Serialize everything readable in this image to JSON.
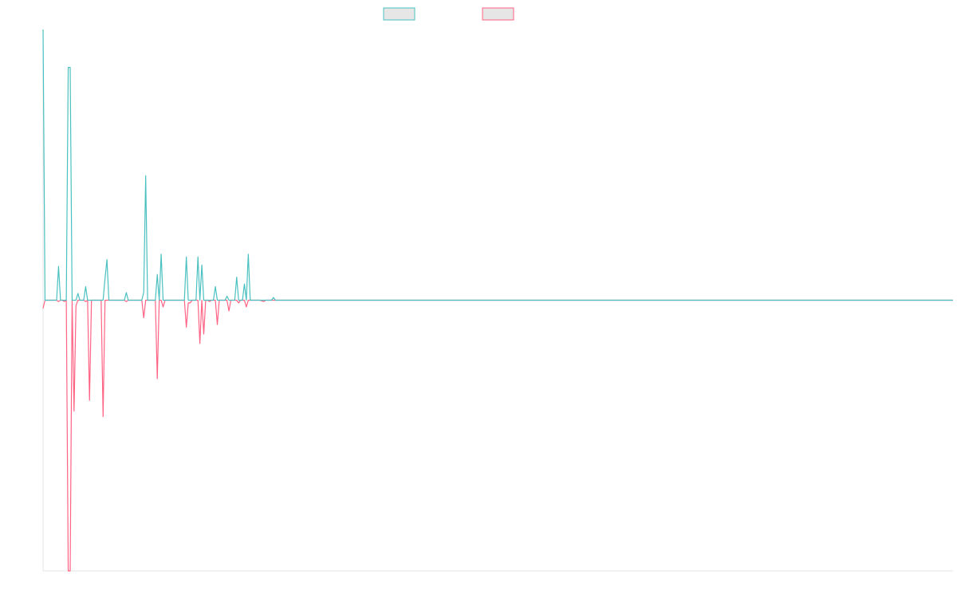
{
  "chart_data": {
    "type": "line",
    "title": "",
    "xlabel": "",
    "ylabel": "",
    "grid": false,
    "legend": "top-center",
    "legend_entries": [
      "",
      ""
    ],
    "series": [
      {
        "name": "",
        "color": "#4bc0c0",
        "points": [
          [
            0,
            1.0
          ],
          [
            1,
            0.0
          ],
          [
            5,
            0.0
          ],
          [
            7,
            0.0
          ],
          [
            8,
            0.125
          ],
          [
            9,
            0.0
          ],
          [
            10,
            0.0
          ],
          [
            11,
            0.0
          ],
          [
            12,
            0.0
          ],
          [
            13,
            0.86
          ],
          [
            14,
            0.86
          ],
          [
            15,
            0.0
          ],
          [
            16,
            0.0
          ],
          [
            17,
            0.0
          ],
          [
            18,
            0.025
          ],
          [
            19,
            0.0
          ],
          [
            20,
            0.0
          ],
          [
            21,
            0.0
          ],
          [
            22,
            0.05
          ],
          [
            23,
            0.0
          ],
          [
            24,
            0.0
          ],
          [
            25,
            0.0
          ],
          [
            26,
            0.0
          ],
          [
            29,
            0.0
          ],
          [
            30,
            0.0
          ],
          [
            31,
            0.0
          ],
          [
            32,
            0.08
          ],
          [
            33,
            0.15
          ],
          [
            34,
            0.0
          ],
          [
            35,
            0.0
          ],
          [
            36,
            0.0
          ],
          [
            40,
            0.0
          ],
          [
            41,
            0.0
          ],
          [
            42,
            0.0
          ],
          [
            43,
            0.028
          ],
          [
            44,
            0.0
          ],
          [
            45,
            0.0
          ],
          [
            50,
            0.0
          ],
          [
            51,
            0.0
          ],
          [
            52,
            0.03
          ],
          [
            53,
            0.46
          ],
          [
            54,
            0.0
          ],
          [
            56,
            0.0
          ],
          [
            57,
            0.0
          ],
          [
            58,
            0.0
          ],
          [
            59,
            0.095
          ],
          [
            60,
            0.0
          ],
          [
            61,
            0.17
          ],
          [
            62,
            0.0
          ],
          [
            63,
            0.0
          ],
          [
            72,
            0.0
          ],
          [
            73,
            0.0
          ],
          [
            74,
            0.16
          ],
          [
            75,
            0.0
          ],
          [
            76,
            0.0
          ],
          [
            77,
            0.0
          ],
          [
            78,
            0.0
          ],
          [
            79,
            0.0
          ],
          [
            80,
            0.16
          ],
          [
            81,
            0.0
          ],
          [
            82,
            0.13
          ],
          [
            83,
            0.0
          ],
          [
            84,
            0.0
          ],
          [
            85,
            0.0
          ],
          [
            86,
            0.0
          ],
          [
            87,
            0.0
          ],
          [
            88,
            0.0
          ],
          [
            89,
            0.05
          ],
          [
            90,
            0.0
          ],
          [
            91,
            0.0
          ],
          [
            92,
            0.0
          ],
          [
            93,
            0.0
          ],
          [
            94,
            0.0
          ],
          [
            95,
            0.015
          ],
          [
            96,
            0.0
          ],
          [
            97,
            0.0
          ],
          [
            98,
            0.0
          ],
          [
            99,
            0.0
          ],
          [
            100,
            0.085
          ],
          [
            101,
            0.0
          ],
          [
            102,
            0.0
          ],
          [
            103,
            0.0
          ],
          [
            104,
            0.06
          ],
          [
            105,
            0.0
          ],
          [
            106,
            0.17
          ],
          [
            107,
            0.0
          ],
          [
            108,
            0.0
          ],
          [
            109,
            0.0
          ],
          [
            110,
            0.0
          ],
          [
            111,
            0.0
          ],
          [
            112,
            0.0
          ],
          [
            114,
            0.0
          ],
          [
            115,
            0.0
          ],
          [
            116,
            0.0
          ],
          [
            117,
            0.0
          ],
          [
            118,
            0.0
          ],
          [
            119,
            0.01
          ],
          [
            120,
            0.0
          ],
          [
            121,
            0.0
          ],
          [
            470,
            0.0
          ]
        ]
      },
      {
        "name": "",
        "color": "#ff6384",
        "points": [
          [
            0,
            -0.03
          ],
          [
            1,
            0.0
          ],
          [
            5,
            0.0
          ],
          [
            7,
            0.0
          ],
          [
            8,
            -0.005
          ],
          [
            9,
            0.0
          ],
          [
            10,
            0.0
          ],
          [
            11,
            -0.005
          ],
          [
            12,
            0.0
          ],
          [
            13,
            -1.0
          ],
          [
            14,
            -1.0
          ],
          [
            15,
            0.0
          ],
          [
            16,
            -0.41
          ],
          [
            17,
            -0.02
          ],
          [
            18,
            0.0
          ],
          [
            19,
            0.0
          ],
          [
            20,
            0.0
          ],
          [
            21,
            0.0
          ],
          [
            22,
            -0.005
          ],
          [
            23,
            0.0
          ],
          [
            24,
            -0.37
          ],
          [
            25,
            0.0
          ],
          [
            26,
            0.0
          ],
          [
            29,
            0.0
          ],
          [
            30,
            0.0
          ],
          [
            31,
            -0.43
          ],
          [
            32,
            0.0
          ],
          [
            33,
            0.0
          ],
          [
            34,
            0.0
          ],
          [
            35,
            0.0
          ],
          [
            36,
            0.0
          ],
          [
            40,
            0.0
          ],
          [
            41,
            0.0
          ],
          [
            42,
            0.0
          ],
          [
            43,
            -0.005
          ],
          [
            44,
            0.0
          ],
          [
            45,
            0.0
          ],
          [
            50,
            0.0
          ],
          [
            51,
            0.0
          ],
          [
            52,
            -0.065
          ],
          [
            53,
            0.0
          ],
          [
            54,
            0.0
          ],
          [
            56,
            0.0
          ],
          [
            57,
            0.0
          ],
          [
            58,
            0.0
          ],
          [
            59,
            -0.29
          ],
          [
            60,
            0.0
          ],
          [
            61,
            0.0
          ],
          [
            62,
            -0.025
          ],
          [
            63,
            0.0
          ],
          [
            72,
            0.0
          ],
          [
            73,
            0.0
          ],
          [
            74,
            -0.1
          ],
          [
            75,
            -0.01
          ],
          [
            76,
            -0.01
          ],
          [
            77,
            0.0
          ],
          [
            78,
            0.0
          ],
          [
            79,
            0.0
          ],
          [
            80,
            0.0
          ],
          [
            81,
            -0.16
          ],
          [
            82,
            0.0
          ],
          [
            83,
            -0.125
          ],
          [
            84,
            0.0
          ],
          [
            85,
            0.0
          ],
          [
            86,
            -0.005
          ],
          [
            87,
            0.0
          ],
          [
            88,
            0.0
          ],
          [
            89,
            0.0
          ],
          [
            90,
            -0.09
          ],
          [
            91,
            0.0
          ],
          [
            92,
            0.0
          ],
          [
            93,
            0.0
          ],
          [
            94,
            0.0
          ],
          [
            95,
            0.0
          ],
          [
            96,
            -0.04
          ],
          [
            97,
            0.0
          ],
          [
            98,
            0.0
          ],
          [
            99,
            0.0
          ],
          [
            100,
            0.0
          ],
          [
            101,
            -0.01
          ],
          [
            102,
            0.0
          ],
          [
            103,
            0.0
          ],
          [
            104,
            0.0
          ],
          [
            105,
            -0.025
          ],
          [
            106,
            0.0
          ],
          [
            107,
            0.0
          ],
          [
            108,
            0.0
          ],
          [
            109,
            0.0
          ],
          [
            110,
            0.0
          ],
          [
            111,
            0.0
          ],
          [
            112,
            0.0
          ],
          [
            114,
            -0.005
          ],
          [
            115,
            0.0
          ],
          [
            116,
            0.0
          ],
          [
            117,
            0.0
          ],
          [
            118,
            0.0
          ],
          [
            119,
            0.0
          ],
          [
            120,
            0.0
          ],
          [
            121,
            0.0
          ],
          [
            470,
            0.0
          ]
        ]
      }
    ],
    "xlim": [
      0,
      470
    ],
    "ylim": [
      -1.0,
      1.0
    ]
  }
}
